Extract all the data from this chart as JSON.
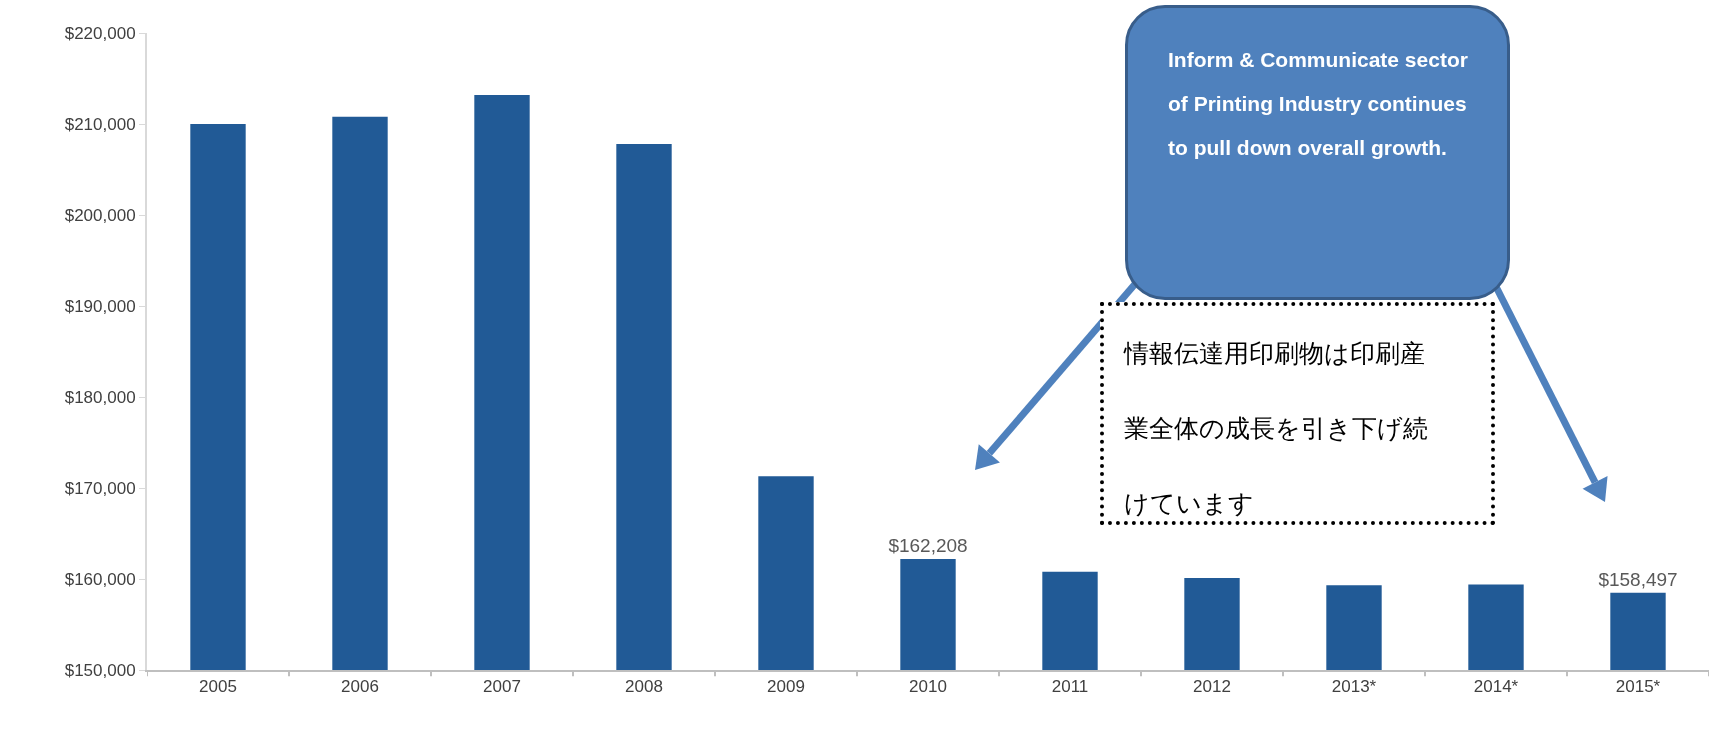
{
  "chart_data": {
    "type": "bar",
    "categories": [
      "2005",
      "2006",
      "2007",
      "2008",
      "2009",
      "2010",
      "2011",
      "2012",
      "2013*",
      "2014*",
      "2015*"
    ],
    "values": [
      210000,
      210800,
      213200,
      207800,
      171300,
      162208,
      160800,
      160100,
      159300,
      159400,
      158497
    ],
    "value_labels": [
      null,
      null,
      null,
      null,
      null,
      "$162,208",
      null,
      null,
      null,
      null,
      "$158,497"
    ],
    "color": "#215a96",
    "ylim": [
      150000,
      220000
    ],
    "yticks": [
      {
        "value": 150000,
        "label": "$150,000"
      },
      {
        "value": 160000,
        "label": "$160,000"
      },
      {
        "value": 170000,
        "label": "$170,000"
      },
      {
        "value": 180000,
        "label": "$180,000"
      },
      {
        "value": 190000,
        "label": "$190,000"
      },
      {
        "value": 200000,
        "label": "$200,000"
      },
      {
        "value": 210000,
        "label": "$210,000"
      },
      {
        "value": 220000,
        "label": "$220,000"
      }
    ],
    "grid": false,
    "annotations": [
      "Inform & Communicate sector of Printing Industry continues to pull down overall growth.",
      "情報伝達用印刷物は印刷産業全体の成長を引き下げ続けています"
    ]
  }
}
